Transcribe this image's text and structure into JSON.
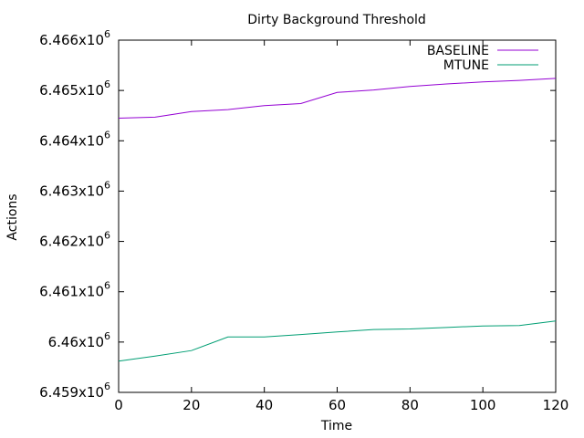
{
  "chart_data": {
    "type": "line",
    "title": "Dirty Background Threshold",
    "xlabel": "Time",
    "ylabel": "Actions",
    "xlim": [
      0,
      120
    ],
    "ylim": [
      6459000,
      6466000
    ],
    "x_ticks": [
      0,
      20,
      40,
      60,
      80,
      100,
      120
    ],
    "y_ticks": [
      {
        "value": 6459000,
        "mantissa": "6.459x10",
        "exp": "6"
      },
      {
        "value": 6460000,
        "mantissa": "6.46x10",
        "exp": "6"
      },
      {
        "value": 6461000,
        "mantissa": "6.461x10",
        "exp": "6"
      },
      {
        "value": 6462000,
        "mantissa": "6.462x10",
        "exp": "6"
      },
      {
        "value": 6463000,
        "mantissa": "6.463x10",
        "exp": "6"
      },
      {
        "value": 6464000,
        "mantissa": "6.464x10",
        "exp": "6"
      },
      {
        "value": 6465000,
        "mantissa": "6.465x10",
        "exp": "6"
      },
      {
        "value": 6466000,
        "mantissa": "6.466x10",
        "exp": "6"
      }
    ],
    "legend_position": "top-right",
    "grid": false,
    "x": [
      0,
      10,
      20,
      30,
      40,
      50,
      60,
      70,
      80,
      90,
      100,
      110,
      120
    ],
    "series": [
      {
        "name": "BASELINE",
        "color": "#9400d3",
        "values": [
          6464450,
          6464470,
          6464580,
          6464620,
          6464700,
          6464740,
          6464960,
          6465010,
          6465080,
          6465130,
          6465170,
          6465200,
          6465240
        ]
      },
      {
        "name": "MTUNE",
        "color": "#009e73",
        "values": [
          6459620,
          6459720,
          6459830,
          6460100,
          6460100,
          6460150,
          6460200,
          6460250,
          6460260,
          6460290,
          6460320,
          6460330,
          6460420
        ]
      }
    ]
  }
}
